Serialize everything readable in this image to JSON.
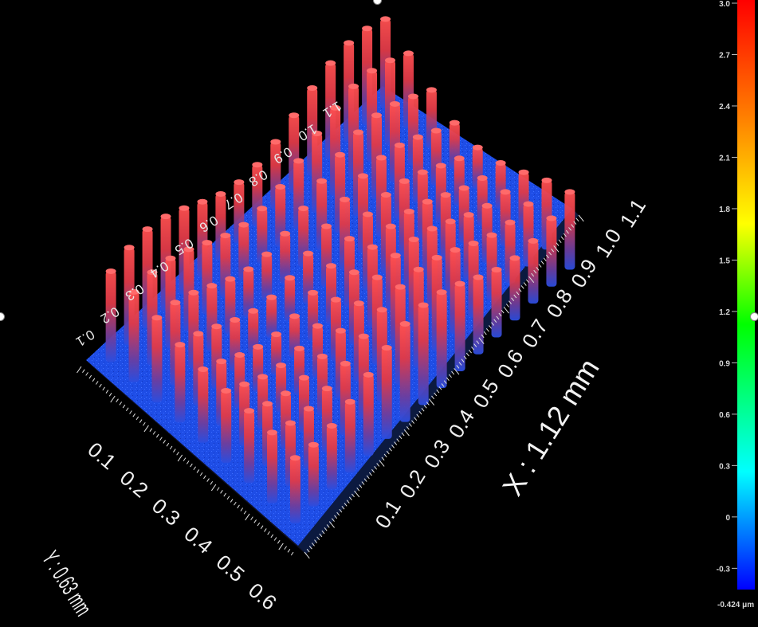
{
  "viewer": {
    "x_axis_label": "X : 1.12 mm",
    "y_axis_label": "Y : 0.63 mm",
    "x_ticks": [
      "0.1",
      "0.2",
      "0.3",
      "0.4",
      "0.5",
      "0.6",
      "0.7",
      "0.8",
      "0.9",
      "1.0",
      "1.1"
    ],
    "y_ticks": [
      "0.1",
      "0.2",
      "0.3",
      "0.4",
      "0.5",
      "0.6"
    ],
    "far_y_ticks": [
      "0.1",
      "0.2",
      "0.3",
      "0.4",
      "0.5",
      "0.6",
      "0.7",
      "0.8",
      "0.9",
      "1.0",
      "1.1"
    ],
    "pillar_grid": {
      "rows": 9,
      "cols": 16
    }
  },
  "colorbar": {
    "ticks": [
      "3.0",
      "2.7",
      "2.4",
      "2.1",
      "1.8",
      "1.5",
      "1.2",
      "0.9",
      "0.6",
      "0.3",
      "0",
      "-0.3"
    ],
    "min_label": "-0.424 μm",
    "min_value": -0.424,
    "max_value": 3.0,
    "colors": [
      "#ff0000",
      "#ff7f00",
      "#ffff00",
      "#00ff00",
      "#00ffff",
      "#0000ff"
    ]
  }
}
